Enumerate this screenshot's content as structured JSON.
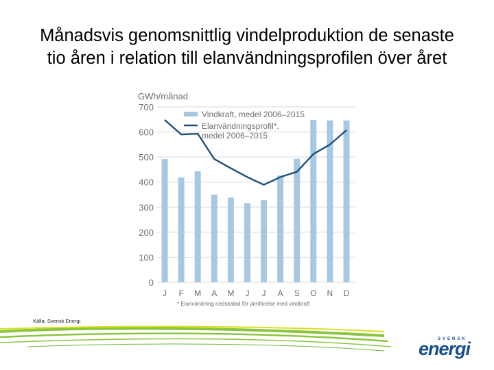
{
  "title": {
    "line1": "Månadsvis genomsnittlig vindelproduktion de senaste",
    "line2": "tio åren i relation till elanvändningsprofilen över året"
  },
  "source": "Källa: Svensk Energi",
  "logo": {
    "top": "SVENSK",
    "main": "energi"
  },
  "chart_data": {
    "type": "bar",
    "categories": [
      "J",
      "F",
      "M",
      "A",
      "M",
      "J",
      "J",
      "A",
      "S",
      "O",
      "N",
      "D"
    ],
    "ylabel": "GWh/månad",
    "ylim": [
      0,
      700
    ],
    "yticks": [
      0,
      100,
      200,
      300,
      400,
      500,
      600,
      700
    ],
    "grid": true,
    "legend_position": "top",
    "footnote": "* Elanvändning nedskalad för jämförelse med vindkraft",
    "series": [
      {
        "name": "Vindkraft, medel 2006–2015",
        "kind": "bar",
        "color": "#a6c8e3",
        "values": [
          492,
          418,
          443,
          350,
          338,
          316,
          328,
          426,
          493,
          648,
          646,
          646
        ]
      },
      {
        "name": "Elanvändningsprofil*, medel 2006–2015",
        "legend_lines": [
          "Elanvändningsprofil*,",
          "medel 2006–2015"
        ],
        "kind": "line",
        "color": "#1f4e79",
        "values": [
          648,
          590,
          593,
          492,
          455,
          420,
          389,
          420,
          441,
          512,
          550,
          607
        ]
      }
    ]
  },
  "colors": {
    "swoosh_green": "#8bc540",
    "swoosh_yellow": "#d9e021",
    "axis_text": "#6d6d6d",
    "grid": "#d9d9d9"
  }
}
